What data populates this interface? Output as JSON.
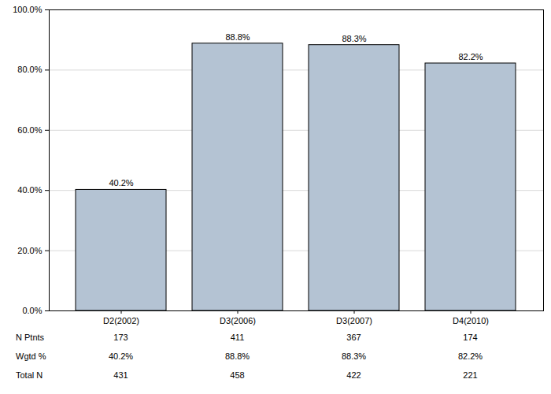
{
  "chart_data": {
    "type": "bar",
    "categories": [
      "D2(2002)",
      "D3(2006)",
      "D3(2007)",
      "D4(2010)"
    ],
    "values": [
      40.2,
      88.8,
      88.3,
      82.2
    ],
    "value_labels": [
      "40.2%",
      "88.8%",
      "88.3%",
      "82.2%"
    ],
    "data_labels": true,
    "color": "#b4c3d3",
    "ylim": [
      0,
      100
    ],
    "yticks": [
      {
        "value": 0,
        "label": "0.0%"
      },
      {
        "value": 20,
        "label": "20.0%"
      },
      {
        "value": 40,
        "label": "40.0%"
      },
      {
        "value": 60,
        "label": "60.0%"
      },
      {
        "value": 80,
        "label": "80.0%"
      },
      {
        "value": 100,
        "label": "100.0%"
      }
    ],
    "grid": true
  },
  "table": {
    "rows": [
      {
        "label": "N Ptnts",
        "values": [
          "173",
          "411",
          "367",
          "174"
        ]
      },
      {
        "label": "Wgtd %",
        "values": [
          "40.2%",
          "88.8%",
          "88.3%",
          "82.2%"
        ]
      },
      {
        "label": "Total N",
        "values": [
          "431",
          "458",
          "422",
          "221"
        ]
      }
    ]
  }
}
